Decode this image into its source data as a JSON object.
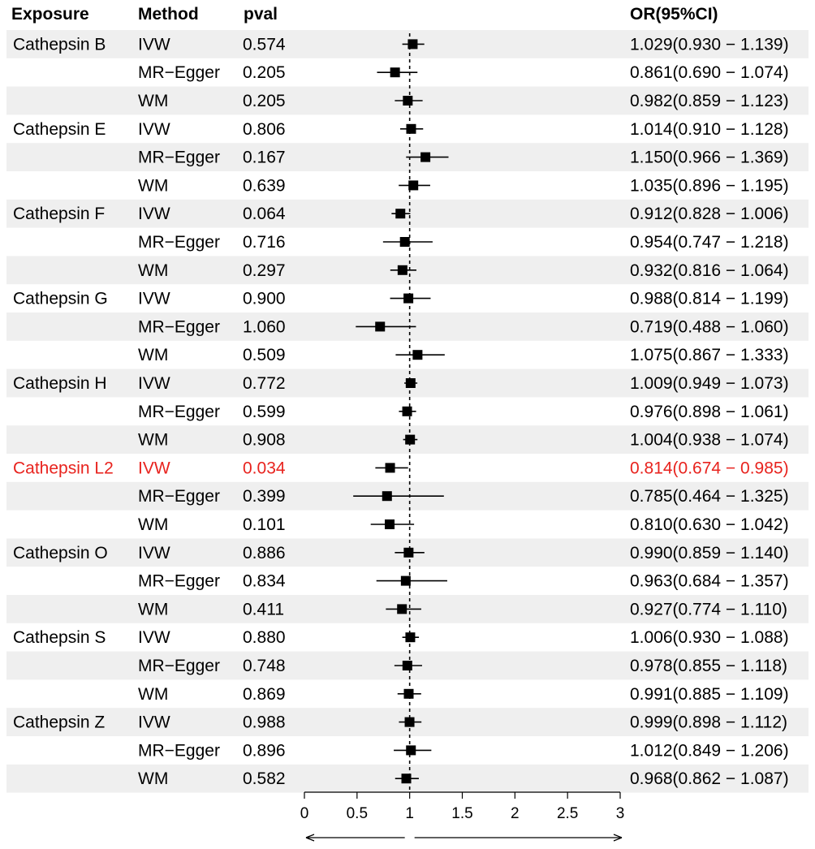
{
  "colors": {
    "stripe": "#efefef",
    "text": "#000000",
    "highlight": "#e8231e"
  },
  "chart_data": {
    "type": "forest",
    "headers": {
      "exposure": "Exposure",
      "method": "Method",
      "pval": "pval",
      "or": "OR(95%CI)"
    },
    "reference_line": 1,
    "xlim": [
      0,
      3
    ],
    "xticks": [
      0,
      0.5,
      1,
      1.5,
      2,
      2.5,
      3
    ],
    "xtick_labels": [
      "0",
      "0.5",
      "1",
      "1.5",
      "2",
      "2.5",
      "3"
    ],
    "highlight_exposure": "Cathepsin L2",
    "rows": [
      {
        "exposure": "Cathepsin B",
        "method": "IVW",
        "pval": "0.574",
        "or": 1.029,
        "lo": 0.93,
        "hi": 1.139,
        "or_text": "1.029(0.930 − 1.139)"
      },
      {
        "exposure": "",
        "method": "MR−Egger",
        "pval": "0.205",
        "or": 0.861,
        "lo": 0.69,
        "hi": 1.074,
        "or_text": "0.861(0.690 − 1.074)"
      },
      {
        "exposure": "",
        "method": "WM",
        "pval": "0.205",
        "or": 0.982,
        "lo": 0.859,
        "hi": 1.123,
        "or_text": "0.982(0.859 − 1.123)"
      },
      {
        "exposure": "Cathepsin E",
        "method": "IVW",
        "pval": "0.806",
        "or": 1.014,
        "lo": 0.91,
        "hi": 1.128,
        "or_text": "1.014(0.910 − 1.128)"
      },
      {
        "exposure": "",
        "method": "MR−Egger",
        "pval": "0.167",
        "or": 1.15,
        "lo": 0.966,
        "hi": 1.369,
        "or_text": "1.150(0.966 − 1.369)"
      },
      {
        "exposure": "",
        "method": "WM",
        "pval": "0.639",
        "or": 1.035,
        "lo": 0.896,
        "hi": 1.195,
        "or_text": "1.035(0.896 − 1.195)"
      },
      {
        "exposure": "Cathepsin F",
        "method": "IVW",
        "pval": "0.064",
        "or": 0.912,
        "lo": 0.828,
        "hi": 1.006,
        "or_text": "0.912(0.828 − 1.006)"
      },
      {
        "exposure": "",
        "method": "MR−Egger",
        "pval": "0.716",
        "or": 0.954,
        "lo": 0.747,
        "hi": 1.218,
        "or_text": "0.954(0.747 − 1.218)"
      },
      {
        "exposure": "",
        "method": "WM",
        "pval": "0.297",
        "or": 0.932,
        "lo": 0.816,
        "hi": 1.064,
        "or_text": "0.932(0.816 − 1.064)"
      },
      {
        "exposure": "Cathepsin G",
        "method": "IVW",
        "pval": "0.900",
        "or": 0.988,
        "lo": 0.814,
        "hi": 1.199,
        "or_text": "0.988(0.814 − 1.199)"
      },
      {
        "exposure": "",
        "method": "MR−Egger",
        "pval": "1.060",
        "or": 0.719,
        "lo": 0.488,
        "hi": 1.06,
        "or_text": "0.719(0.488 − 1.060)"
      },
      {
        "exposure": "",
        "method": "WM",
        "pval": "0.509",
        "or": 1.075,
        "lo": 0.867,
        "hi": 1.333,
        "or_text": "1.075(0.867 − 1.333)"
      },
      {
        "exposure": "Cathepsin H",
        "method": "IVW",
        "pval": "0.772",
        "or": 1.009,
        "lo": 0.949,
        "hi": 1.073,
        "or_text": "1.009(0.949 − 1.073)"
      },
      {
        "exposure": "",
        "method": "MR−Egger",
        "pval": "0.599",
        "or": 0.976,
        "lo": 0.898,
        "hi": 1.061,
        "or_text": "0.976(0.898 − 1.061)"
      },
      {
        "exposure": "",
        "method": "WM",
        "pval": "0.908",
        "or": 1.004,
        "lo": 0.938,
        "hi": 1.074,
        "or_text": "1.004(0.938 − 1.074)"
      },
      {
        "exposure": "Cathepsin L2",
        "method": "IVW",
        "pval": "0.034",
        "or": 0.814,
        "lo": 0.674,
        "hi": 0.985,
        "or_text": "0.814(0.674 − 0.985)"
      },
      {
        "exposure": "",
        "method": "MR−Egger",
        "pval": "0.399",
        "or": 0.785,
        "lo": 0.464,
        "hi": 1.325,
        "or_text": "0.785(0.464 − 1.325)"
      },
      {
        "exposure": "",
        "method": "WM",
        "pval": "0.101",
        "or": 0.81,
        "lo": 0.63,
        "hi": 1.042,
        "or_text": "0.810(0.630 − 1.042)"
      },
      {
        "exposure": "Cathepsin O",
        "method": "IVW",
        "pval": "0.886",
        "or": 0.99,
        "lo": 0.859,
        "hi": 1.14,
        "or_text": "0.990(0.859 − 1.140)"
      },
      {
        "exposure": "",
        "method": "MR−Egger",
        "pval": "0.834",
        "or": 0.963,
        "lo": 0.684,
        "hi": 1.357,
        "or_text": "0.963(0.684 − 1.357)"
      },
      {
        "exposure": "",
        "method": "WM",
        "pval": "0.411",
        "or": 0.927,
        "lo": 0.774,
        "hi": 1.11,
        "or_text": "0.927(0.774 − 1.110)"
      },
      {
        "exposure": "Cathepsin S",
        "method": "IVW",
        "pval": "0.880",
        "or": 1.006,
        "lo": 0.93,
        "hi": 1.088,
        "or_text": "1.006(0.930 − 1.088)"
      },
      {
        "exposure": "",
        "method": "MR−Egger",
        "pval": "0.748",
        "or": 0.978,
        "lo": 0.855,
        "hi": 1.118,
        "or_text": "0.978(0.855 − 1.118)"
      },
      {
        "exposure": "",
        "method": "WM",
        "pval": "0.869",
        "or": 0.991,
        "lo": 0.885,
        "hi": 1.109,
        "or_text": "0.991(0.885 − 1.109)"
      },
      {
        "exposure": "Cathepsin Z",
        "method": "IVW",
        "pval": "0.988",
        "or": 0.999,
        "lo": 0.898,
        "hi": 1.112,
        "or_text": "0.999(0.898 − 1.112)"
      },
      {
        "exposure": "",
        "method": "MR−Egger",
        "pval": "0.896",
        "or": 1.012,
        "lo": 0.849,
        "hi": 1.206,
        "or_text": "1.012(0.849 − 1.206)"
      },
      {
        "exposure": "",
        "method": "WM",
        "pval": "0.582",
        "or": 0.968,
        "lo": 0.862,
        "hi": 1.087,
        "or_text": "0.968(0.862 − 1.087)"
      }
    ]
  }
}
